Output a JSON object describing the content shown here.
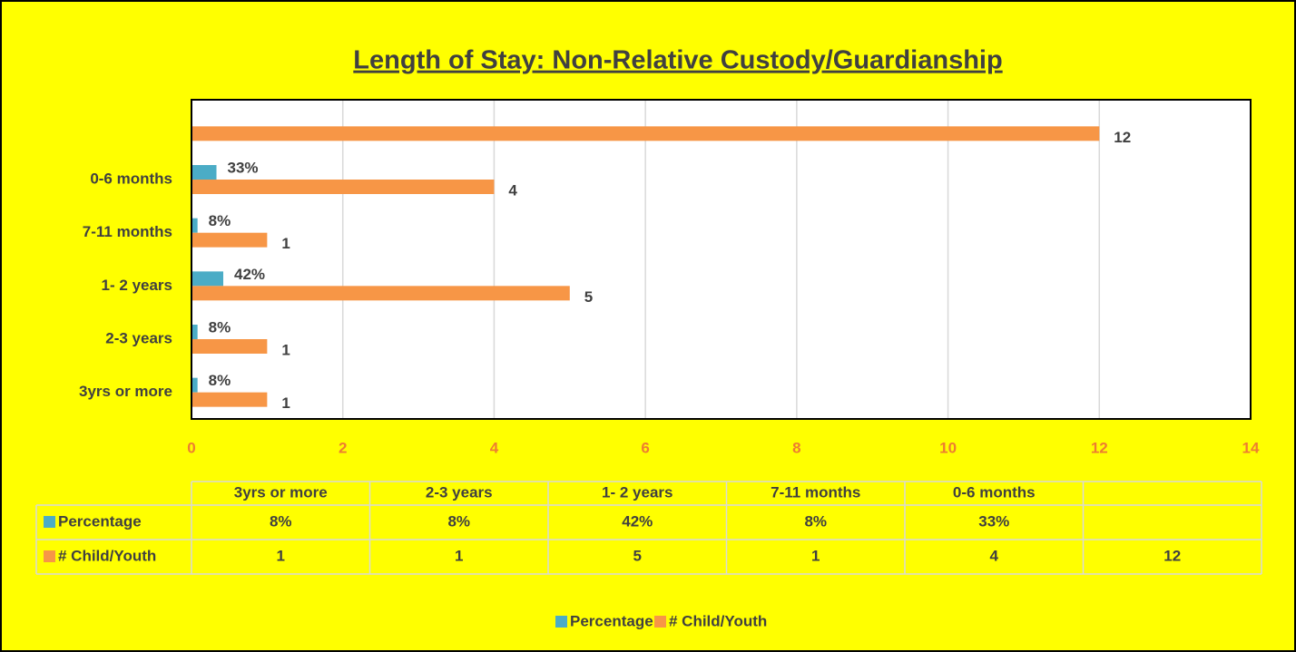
{
  "chart_data": {
    "type": "bar",
    "orientation": "horizontal",
    "title": "Length of Stay: Non-Relative Custody/Guardianship",
    "categories": [
      "3yrs or more",
      "2-3 years",
      "1- 2 years",
      "7-11 months",
      "0-6 months",
      null
    ],
    "series": [
      {
        "name": "Percentage",
        "color": "#4bacc6",
        "values": [
          0.08,
          0.08,
          0.42,
          0.08,
          0.33,
          null
        ],
        "value_labels": [
          "8%",
          "8%",
          "42%",
          "8%",
          "33%",
          null
        ]
      },
      {
        "name": "# Child/Youth",
        "color": "#f79646",
        "values": [
          1,
          1,
          5,
          1,
          4,
          12
        ]
      }
    ],
    "xlim": [
      0,
      14
    ],
    "xticks": [
      0,
      2,
      4,
      6,
      8,
      10,
      12,
      14
    ],
    "grid": true,
    "legend": "bottom",
    "data_table": true
  }
}
